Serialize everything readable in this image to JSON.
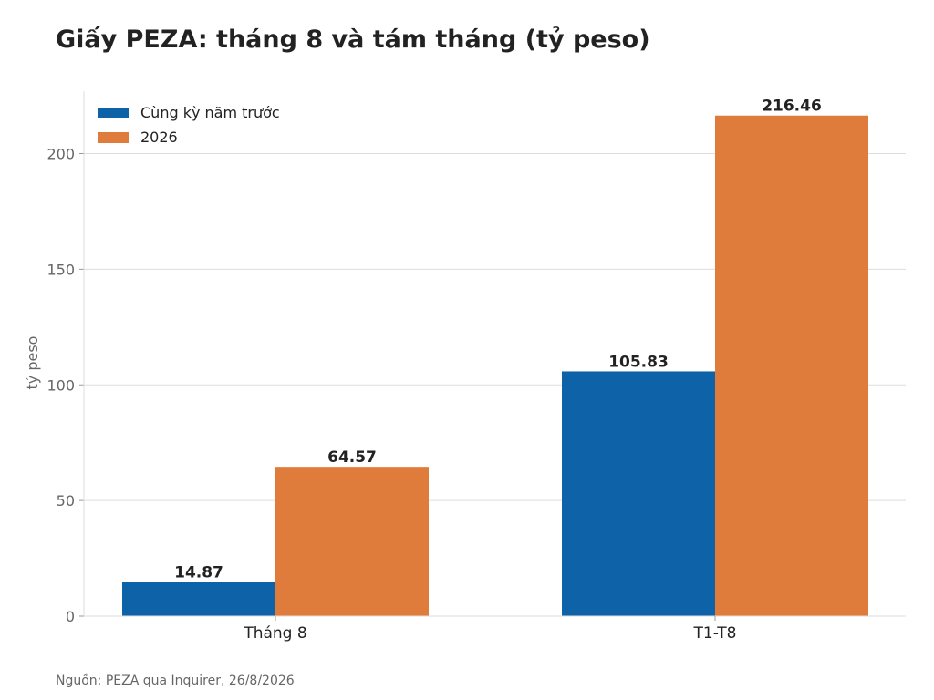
{
  "title": "Giấy PEZA: tháng 8 và tám tháng (tỷ peso)",
  "source": "Nguồn: PEZA qua Inquirer, 26/8/2026",
  "colors": {
    "series_prior": "#0d62a8",
    "series_current": "#e07c3b",
    "grid": "#dddddd",
    "axis": "#dddddd",
    "tick_text": "#666666",
    "label_text": "#222222"
  },
  "chart_data": {
    "type": "bar",
    "title": "Giấy PEZA: tháng 8 và tám tháng (tỷ peso)",
    "categories": [
      "Tháng 8",
      "T1-T8"
    ],
    "series": [
      {
        "name": "Cùng kỳ năm trước",
        "values": [
          14.87,
          105.83
        ],
        "labels": [
          "14.87",
          "105.83"
        ]
      },
      {
        "name": "2026",
        "values": [
          64.57,
          216.46
        ],
        "labels": [
          "64.57",
          "216.46"
        ]
      }
    ],
    "xlabel": "",
    "ylabel": "tỷ peso",
    "ylim": [
      0,
      227
    ],
    "yticks": [
      0,
      50,
      100,
      150,
      200
    ],
    "grid": true,
    "legend": "top-left"
  }
}
